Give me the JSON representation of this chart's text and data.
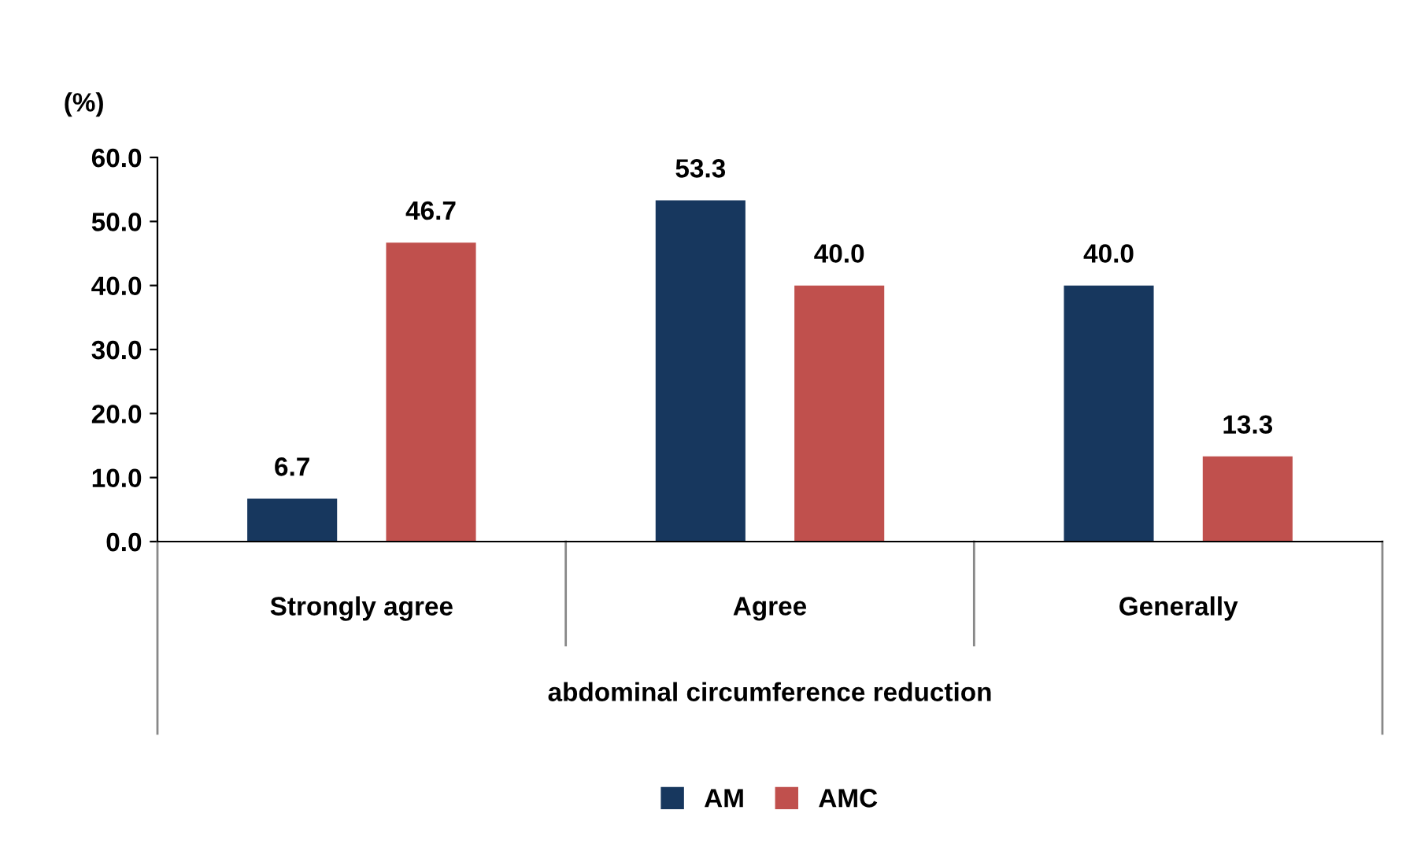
{
  "chart_data": {
    "type": "bar",
    "ylabel": "(%)",
    "xlabel": "abdominal circumference reduction",
    "categories": [
      "Strongly agree",
      "Agree",
      "Generally"
    ],
    "series": [
      {
        "name": "AM",
        "color": "#17375e",
        "values": [
          6.7,
          53.3,
          40.0
        ],
        "value_labels": [
          "6.7",
          "53.3",
          "40.0"
        ]
      },
      {
        "name": "AMC",
        "color": "#c0504d",
        "values": [
          46.7,
          40.0,
          13.3
        ],
        "value_labels": [
          "46.7",
          "40.0",
          "13.3"
        ]
      }
    ],
    "ylim": [
      0,
      60
    ],
    "yticks": [
      {
        "value": 0,
        "label": "0.0"
      },
      {
        "value": 10,
        "label": "10.0"
      },
      {
        "value": 20,
        "label": "20.0"
      },
      {
        "value": 30,
        "label": "30.0"
      },
      {
        "value": 40,
        "label": "40.0"
      },
      {
        "value": 50,
        "label": "50.0"
      },
      {
        "value": 60,
        "label": "60.0"
      }
    ],
    "grid": false,
    "legend": "bottom"
  }
}
